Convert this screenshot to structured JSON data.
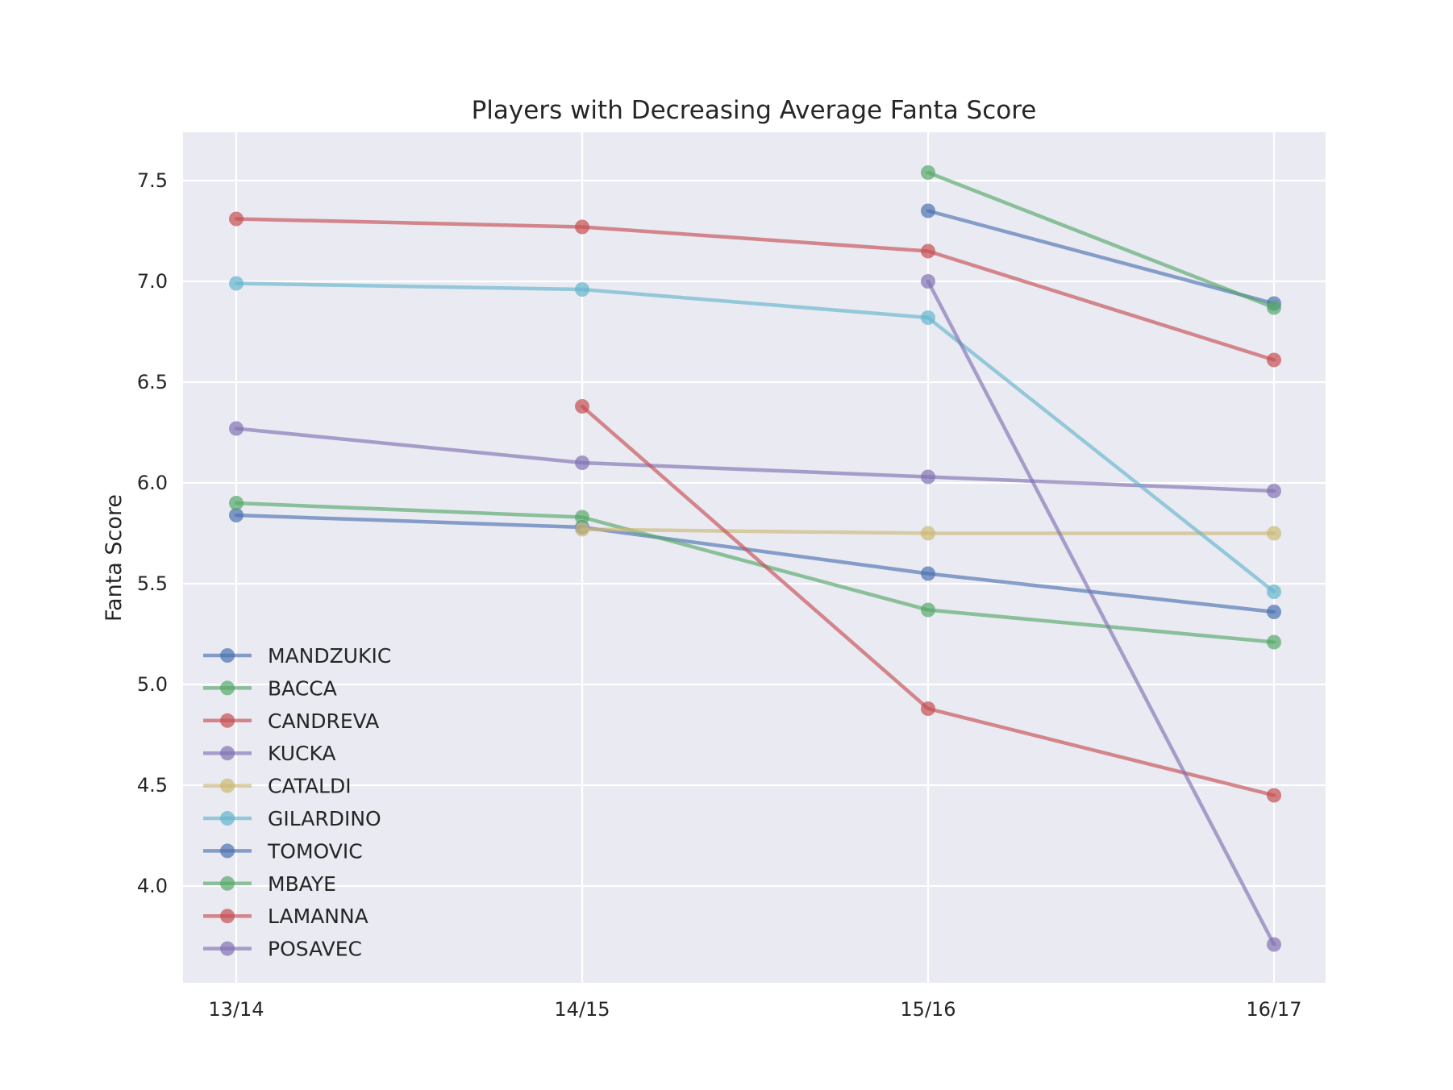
{
  "chart_data": {
    "type": "line",
    "title": "Players with Decreasing Average Fanta Score",
    "xlabel": "",
    "ylabel": "Fanta Score",
    "categories": [
      "13/14",
      "14/15",
      "15/16",
      "16/17"
    ],
    "ylim": [
      3.52,
      7.74
    ],
    "yticks": [
      4.0,
      4.5,
      5.0,
      5.5,
      6.0,
      6.5,
      7.0,
      7.5
    ],
    "ytick_labels": [
      "4.0",
      "4.5",
      "5.0",
      "5.5",
      "6.0",
      "6.5",
      "7.0",
      "7.5"
    ],
    "grid": true,
    "legend_position": "lower-left",
    "series": [
      {
        "name": "MANDZUKIC",
        "color": "#4c72b0",
        "values": [
          5.84,
          5.78,
          5.55,
          5.36
        ]
      },
      {
        "name": "BACCA",
        "color": "#55a868",
        "values": [
          5.9,
          5.83,
          5.37,
          5.21
        ]
      },
      {
        "name": "CANDREVA",
        "color": "#c44e52",
        "values": [
          7.31,
          7.27,
          7.15,
          6.61
        ]
      },
      {
        "name": "KUCKA",
        "color": "#8172b2",
        "values": [
          6.27,
          6.1,
          6.03,
          5.96
        ]
      },
      {
        "name": "CATALDI",
        "color": "#ccb974",
        "values": [
          null,
          5.77,
          5.75,
          5.75
        ]
      },
      {
        "name": "GILARDINO",
        "color": "#64b5cd",
        "values": [
          6.99,
          6.96,
          6.82,
          5.46
        ]
      },
      {
        "name": "TOMOVIC",
        "color": "#4c72b0",
        "values": [
          null,
          null,
          7.35,
          6.89
        ]
      },
      {
        "name": "MBAYE",
        "color": "#55a868",
        "values": [
          null,
          null,
          7.54,
          6.87
        ]
      },
      {
        "name": "LAMANNA",
        "color": "#c44e52",
        "values": [
          null,
          6.38,
          4.88,
          4.45
        ]
      },
      {
        "name": "POSAVEC",
        "color": "#8172b2",
        "values": [
          null,
          null,
          7.0,
          3.71
        ]
      }
    ],
    "colors": {
      "plot_background": "#eaeaf2",
      "grid": "#ffffff",
      "text": "#262626"
    }
  }
}
